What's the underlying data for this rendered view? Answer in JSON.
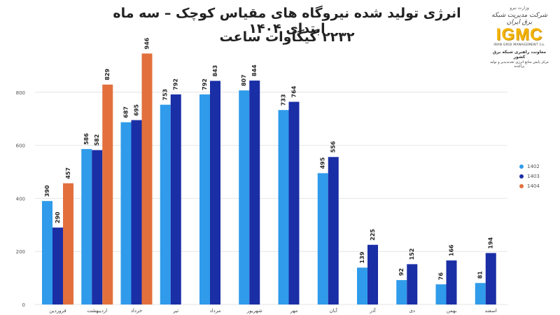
{
  "title": {
    "line1": "انرژی تولید شده نیروگاه های مقیاس کوچک – سه ماه ابتدای ۱۴۰۴",
    "line2": "۲۲۳۲ گیگاوات ساعت"
  },
  "logo": {
    "org_top": "وزارت نیرو",
    "script_text": "شرکت مدیریت شبکه برق ایران",
    "brand": "IGMC",
    "english": "IRAN GRID MANAGEMENT Co.",
    "subtitle1": "معاونت راهبری شبکه برق کشور",
    "subtitle2": "مرکز پایش منابع انرژی تجدیدپذیر و تولید پراکنده"
  },
  "colors": {
    "s1402": "#2f9bea",
    "s1403": "#1a2ea6",
    "s1404": "#e2703d"
  },
  "chart_data": {
    "type": "bar",
    "categories": [
      "فروردین",
      "اردیبهشت",
      "خرداد",
      "تیر",
      "مرداد",
      "شهریور",
      "مهر",
      "آبان",
      "آذر",
      "دی",
      "بهمن",
      "اسفند"
    ],
    "series": [
      {
        "name": "1402",
        "values": [
          390,
          586,
          687,
          753,
          792,
          807,
          733,
          495,
          139,
          92,
          76,
          81
        ]
      },
      {
        "name": "1403",
        "values": [
          290,
          582,
          695,
          792,
          843,
          844,
          764,
          556,
          225,
          152,
          166,
          194
        ]
      },
      {
        "name": "1404",
        "values": [
          457,
          829,
          946,
          null,
          null,
          null,
          null,
          null,
          null,
          null,
          null,
          null
        ]
      }
    ],
    "yticks": [
      0,
      200,
      400,
      600,
      800
    ],
    "ylim": [
      0,
      1000
    ],
    "grid": true,
    "legend_position": "right"
  }
}
